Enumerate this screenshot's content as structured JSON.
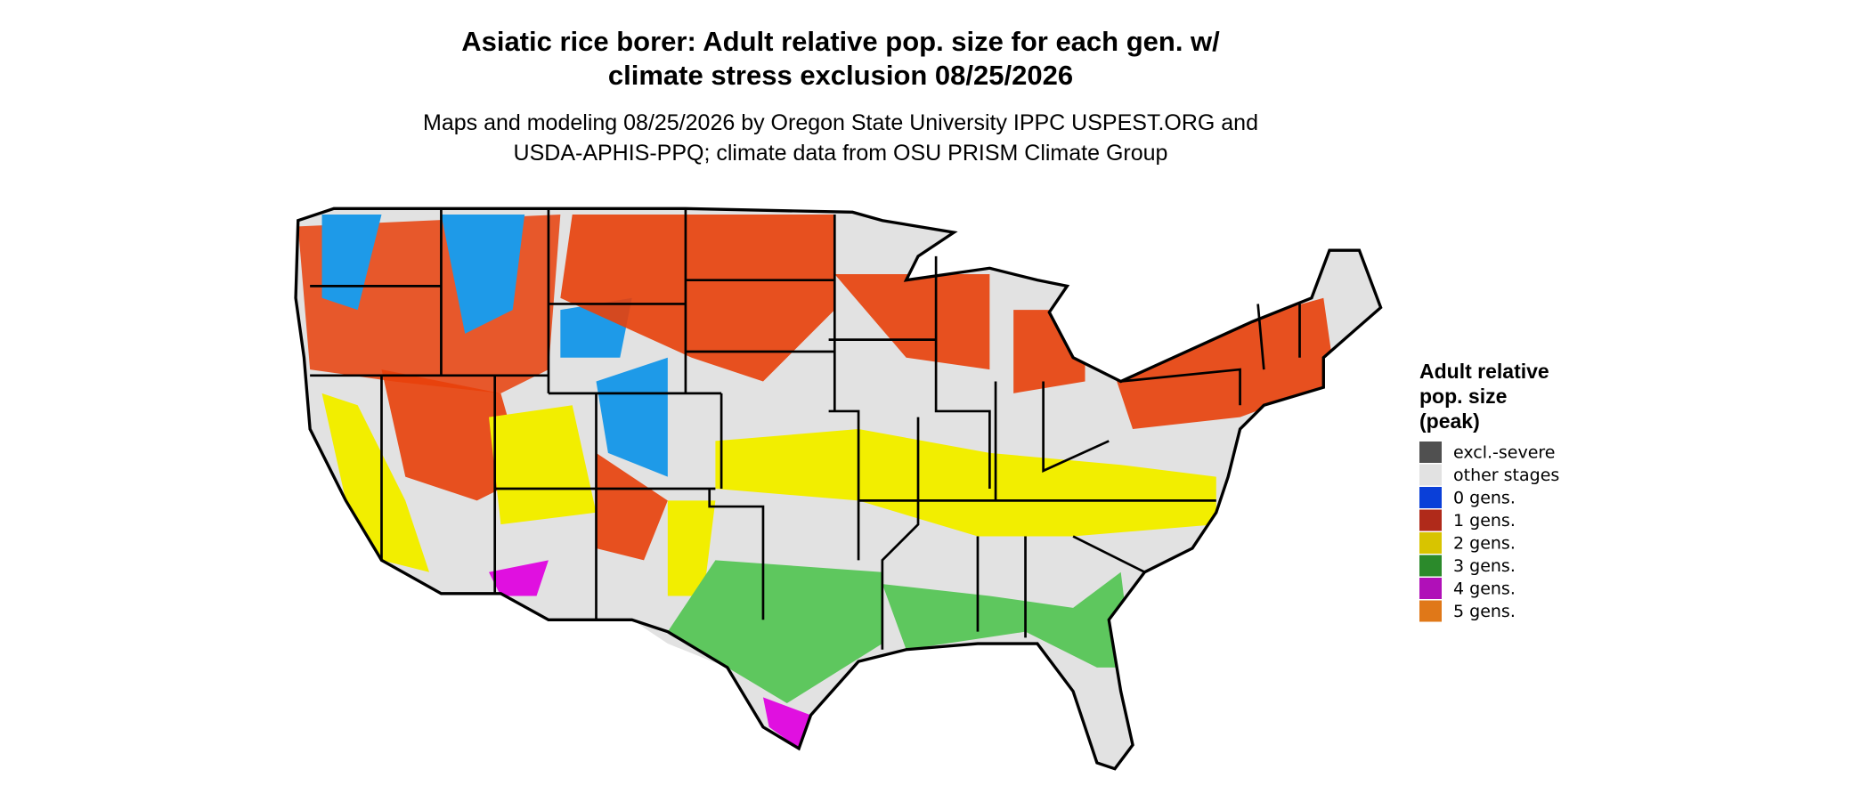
{
  "title": [
    "Asiatic rice borer: Adult relative pop. size for each gen. w/",
    "climate stress exclusion 08/25/2026"
  ],
  "subtitle": [
    "Maps and modeling 08/25/2026 by Oregon State University IPPC USPEST.ORG and",
    "USDA-APHIS-PPQ; climate data from OSU PRISM Climate Group"
  ],
  "legend": {
    "title": [
      "Adult relative",
      "pop. size",
      "(peak)"
    ],
    "items": [
      {
        "label": "excl.-severe",
        "color": "#505050"
      },
      {
        "label": "other stages",
        "color": "#e2e2e2"
      },
      {
        "label": "0 gens.",
        "color": "#0a3fd8"
      },
      {
        "label": "1 gens.",
        "color": "#b02a1a"
      },
      {
        "label": "2 gens.",
        "color": "#d8c400"
      },
      {
        "label": "3 gens.",
        "color": "#2b8a2b"
      },
      {
        "label": "4 gens.",
        "color": "#b010b8"
      },
      {
        "label": "5 gens.",
        "color": "#e07818"
      }
    ]
  }
}
